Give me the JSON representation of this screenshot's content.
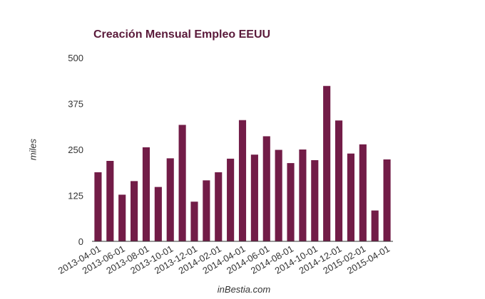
{
  "chart_data": {
    "type": "bar",
    "title": "Creación Mensual Empleo EEUU",
    "xlabel": "inBestia.com",
    "ylabel": "miles",
    "ylim": [
      0,
      500
    ],
    "yticks": [
      0,
      125,
      250,
      375,
      500
    ],
    "grid": false,
    "legend": "none",
    "bar_color": "#721c47",
    "categories": [
      "2013-04-01",
      "2013-05-01",
      "2013-06-01",
      "2013-07-01",
      "2013-08-01",
      "2013-09-01",
      "2013-10-01",
      "2013-11-01",
      "2013-12-01",
      "2014-01-01",
      "2014-02-01",
      "2014-03-01",
      "2014-04-01",
      "2014-05-01",
      "2014-06-01",
      "2014-07-01",
      "2014-08-01",
      "2014-09-01",
      "2014-10-01",
      "2014-11-01",
      "2014-12-01",
      "2015-01-01",
      "2015-02-01",
      "2015-03-01",
      "2015-04-01"
    ],
    "tick_labels": [
      "2013-04-01",
      "2013-06-01",
      "2013-08-01",
      "2013-10-01",
      "2013-12-01",
      "2014-02-01",
      "2014-04-01",
      "2014-06-01",
      "2014-08-01",
      "2014-10-01",
      "2014-12-01",
      "2015-02-01",
      "2015-04-01"
    ],
    "values": [
      188,
      219,
      127,
      164,
      256,
      148,
      226,
      317,
      108,
      166,
      188,
      225,
      330,
      236,
      286,
      249,
      213,
      250,
      221,
      423,
      329,
      239,
      264,
      84,
      223
    ]
  }
}
